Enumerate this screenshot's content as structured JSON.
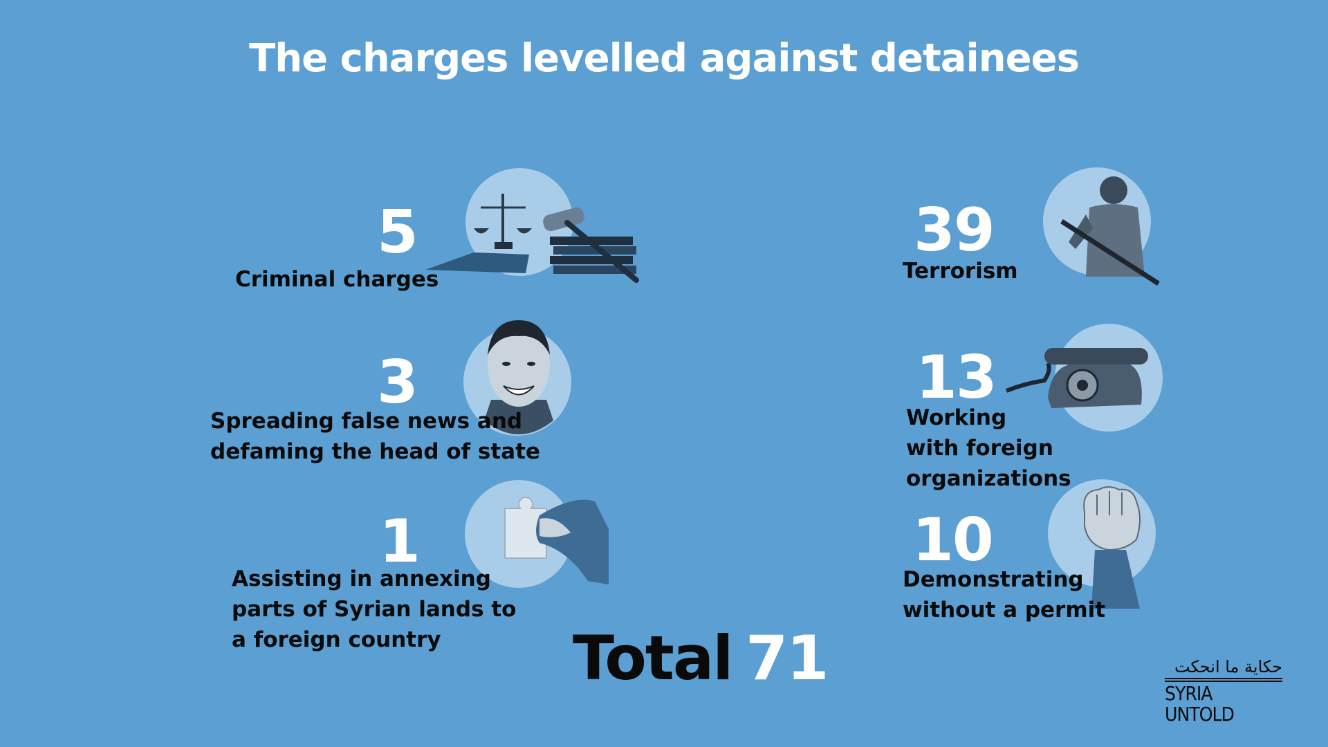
{
  "title": "The charges levelled against detainees",
  "charges": [
    {
      "count": "5",
      "label": "Criminal charges",
      "icon": "scales-gavel-icon"
    },
    {
      "count": "3",
      "label": "Spreading false news and\ndefaming the head of state",
      "icon": "portrait-icon"
    },
    {
      "count": "1",
      "label": "Assisting in annexing\nparts of Syrian lands to\na foreign country",
      "icon": "puzzle-piece-icon"
    },
    {
      "count": "39",
      "label": "Terrorism",
      "icon": "armed-man-icon"
    },
    {
      "count": "13",
      "label": "Working\nwith foreign\norganizations",
      "icon": "rotary-telephone-icon"
    },
    {
      "count": "10",
      "label": "Demonstrating\nwithout a permit",
      "icon": "raised-fist-icon"
    }
  ],
  "total": {
    "label": "Total",
    "value": "71"
  },
  "logo": {
    "arabic": "حكاية ما انحكت",
    "english": "SYRIA UNTOLD"
  },
  "colors": {
    "background": "#5b9fd3",
    "circle": "#a9cde8",
    "number": "#ffffff",
    "label": "#0a0a0a"
  }
}
